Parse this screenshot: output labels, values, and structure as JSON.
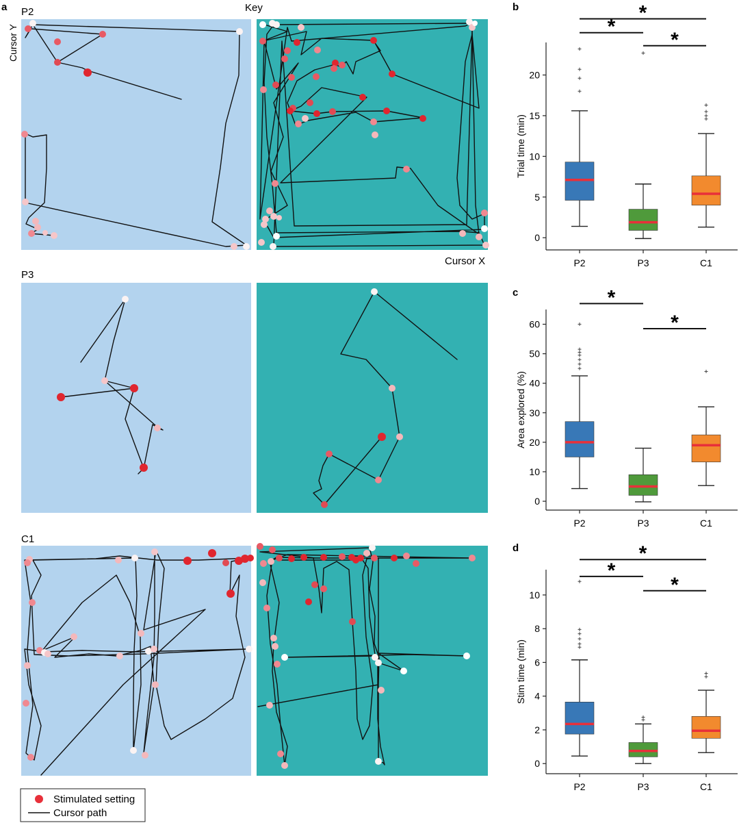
{
  "panel_a": {
    "letter": "a",
    "key_label": "Key",
    "cursor_y_label": "Cursor Y",
    "cursor_x_label": "Cursor X",
    "rows": [
      {
        "label": "P2"
      },
      {
        "label": "P3"
      },
      {
        "label": "C1"
      }
    ],
    "colors": {
      "left_background": "#b3d3ee",
      "right_background": "#33b1b2",
      "path": "#111111"
    },
    "legend": {
      "stimulated_setting": "Stimulated setting",
      "cursor_path": "Cursor path",
      "marker_color": "#e8303a"
    }
  },
  "chart_data": [
    {
      "type": "box",
      "letter": "b",
      "ylabel": "Trial time (min)",
      "categories": [
        "P2",
        "P3",
        "C1"
      ],
      "ylim": [
        -1.5,
        24
      ],
      "yticks": [
        0,
        5,
        10,
        15,
        20
      ],
      "box_colors": [
        "#3878b7",
        "#4f9a3b",
        "#f28a2e"
      ],
      "median_color": "#e8303a",
      "boxes": [
        {
          "name": "P2",
          "q1": 4.6,
          "median": 7.1,
          "q3": 9.3,
          "whisker_low": 1.4,
          "whisker_high": 15.6,
          "outliers": [
            18.0,
            19.6,
            20.7,
            23.2
          ]
        },
        {
          "name": "P3",
          "q1": 0.9,
          "median": 1.9,
          "q3": 3.5,
          "whisker_low": -0.1,
          "whisker_high": 6.6,
          "outliers": [
            22.7
          ]
        },
        {
          "name": "C1",
          "q1": 4.0,
          "median": 5.4,
          "q3": 7.6,
          "whisker_low": 1.3,
          "whisker_high": 12.8,
          "outliers": [
            14.6,
            15.0,
            15.5,
            16.3
          ]
        }
      ],
      "significance": [
        {
          "from": 0,
          "to": 2,
          "y": 26.9,
          "label": "*"
        },
        {
          "from": 0,
          "to": 1,
          "y": 25.2,
          "label": "*"
        },
        {
          "from": 1,
          "to": 2,
          "y": 23.6,
          "label": "*"
        }
      ]
    },
    {
      "type": "box",
      "letter": "c",
      "ylabel": "Area explored (%)",
      "categories": [
        "P2",
        "P3",
        "C1"
      ],
      "ylim": [
        -3,
        65
      ],
      "yticks": [
        0,
        10,
        20,
        30,
        40,
        50,
        60
      ],
      "box_colors": [
        "#3878b7",
        "#4f9a3b",
        "#f28a2e"
      ],
      "median_color": "#e8303a",
      "boxes": [
        {
          "name": "P2",
          "q1": 15.0,
          "median": 20.0,
          "q3": 27.0,
          "whisker_low": 4.3,
          "whisker_high": 42.5,
          "outliers": [
            45.0,
            46.5,
            48.0,
            49.5,
            50.5,
            51.5,
            60.0
          ]
        },
        {
          "name": "P3",
          "q1": 2.0,
          "median": 5.0,
          "q3": 9.0,
          "whisker_low": -0.2,
          "whisker_high": 18.0,
          "outliers": []
        },
        {
          "name": "C1",
          "q1": 13.3,
          "median": 19.0,
          "q3": 22.5,
          "whisker_low": 5.3,
          "whisker_high": 32.0,
          "outliers": [
            44.0
          ]
        }
      ],
      "significance": [
        {
          "from": 0,
          "to": 1,
          "y": 67.0,
          "label": "*"
        },
        {
          "from": 1,
          "to": 2,
          "y": 58.5,
          "label": "*"
        }
      ]
    },
    {
      "type": "box",
      "letter": "d",
      "ylabel": "Stim time (min)",
      "categories": [
        "P2",
        "P3",
        "C1"
      ],
      "ylim": [
        -0.6,
        11.5
      ],
      "yticks": [
        0,
        2,
        4,
        6,
        8,
        10
      ],
      "box_colors": [
        "#3878b7",
        "#4f9a3b",
        "#f28a2e"
      ],
      "median_color": "#e8303a",
      "boxes": [
        {
          "name": "P2",
          "q1": 1.75,
          "median": 2.35,
          "q3": 3.65,
          "whisker_low": 0.45,
          "whisker_high": 6.15,
          "outliers": [
            6.9,
            7.1,
            7.4,
            7.7,
            7.95,
            10.8
          ]
        },
        {
          "name": "P3",
          "q1": 0.4,
          "median": 0.75,
          "q3": 1.25,
          "whisker_low": 0.0,
          "whisker_high": 2.35,
          "outliers": [
            2.6,
            2.75
          ]
        },
        {
          "name": "C1",
          "q1": 1.5,
          "median": 1.95,
          "q3": 2.8,
          "whisker_low": 0.65,
          "whisker_high": 4.35,
          "outliers": [
            5.15,
            5.35
          ]
        }
      ],
      "significance": [
        {
          "from": 0,
          "to": 2,
          "y": 12.1,
          "label": "*"
        },
        {
          "from": 0,
          "to": 1,
          "y": 11.1,
          "label": "*"
        },
        {
          "from": 1,
          "to": 2,
          "y": 10.25,
          "label": "*"
        }
      ]
    }
  ]
}
